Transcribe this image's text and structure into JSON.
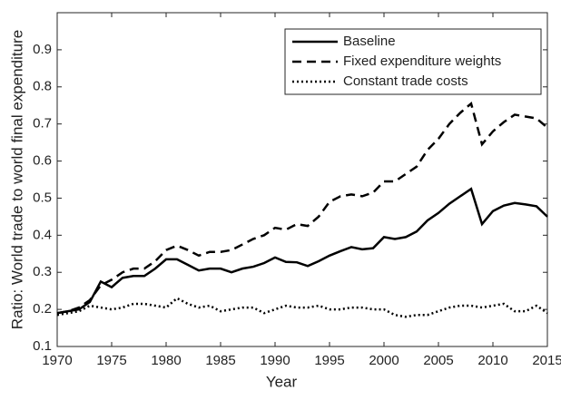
{
  "chart_data": {
    "type": "line",
    "x_label": "Year",
    "y_label": "Ratio: World trade to world final expenditure",
    "x": [
      1970,
      1971,
      1972,
      1973,
      1974,
      1975,
      1976,
      1977,
      1978,
      1979,
      1980,
      1981,
      1982,
      1983,
      1984,
      1985,
      1986,
      1987,
      1988,
      1989,
      1990,
      1991,
      1992,
      1993,
      1994,
      1995,
      1996,
      1997,
      1998,
      1999,
      2000,
      2001,
      2002,
      2003,
      2004,
      2005,
      2006,
      2007,
      2008,
      2009,
      2010,
      2011,
      2012,
      2013,
      2014,
      2015
    ],
    "series": [
      {
        "name": "Baseline",
        "color": "#000000",
        "line_style": "solid",
        "values": [
          0.19,
          0.195,
          0.2,
          0.22,
          0.275,
          0.26,
          0.285,
          0.29,
          0.29,
          0.31,
          0.335,
          0.335,
          0.32,
          0.305,
          0.31,
          0.31,
          0.3,
          0.31,
          0.315,
          0.325,
          0.34,
          0.328,
          0.327,
          0.317,
          0.33,
          0.345,
          0.357,
          0.368,
          0.362,
          0.365,
          0.395,
          0.39,
          0.395,
          0.41,
          0.44,
          0.46,
          0.485,
          0.505,
          0.525,
          0.43,
          0.465,
          0.48,
          0.487,
          0.483,
          0.478,
          0.45
        ]
      },
      {
        "name": "Fixed expenditure weights",
        "color": "#000000",
        "line_style": "dashed",
        "values": [
          0.19,
          0.195,
          0.205,
          0.225,
          0.265,
          0.28,
          0.3,
          0.31,
          0.31,
          0.33,
          0.36,
          0.372,
          0.36,
          0.345,
          0.355,
          0.355,
          0.36,
          0.375,
          0.39,
          0.4,
          0.42,
          0.415,
          0.43,
          0.425,
          0.45,
          0.49,
          0.505,
          0.51,
          0.505,
          0.515,
          0.545,
          0.545,
          0.565,
          0.585,
          0.63,
          0.66,
          0.7,
          0.73,
          0.755,
          0.645,
          0.68,
          0.705,
          0.725,
          0.72,
          0.715,
          0.69
        ]
      },
      {
        "name": "Constant trade costs",
        "color": "#000000",
        "line_style": "dotted",
        "values": [
          0.185,
          0.19,
          0.195,
          0.21,
          0.205,
          0.2,
          0.205,
          0.215,
          0.215,
          0.21,
          0.205,
          0.23,
          0.215,
          0.205,
          0.21,
          0.195,
          0.2,
          0.205,
          0.205,
          0.19,
          0.2,
          0.21,
          0.205,
          0.205,
          0.21,
          0.2,
          0.2,
          0.205,
          0.205,
          0.2,
          0.2,
          0.185,
          0.18,
          0.185,
          0.185,
          0.195,
          0.205,
          0.21,
          0.21,
          0.205,
          0.21,
          0.215,
          0.195,
          0.195,
          0.21,
          0.19
        ]
      }
    ],
    "xlim": [
      1970,
      2015
    ],
    "xticks": [
      1970,
      1975,
      1980,
      1985,
      1990,
      1995,
      2000,
      2005,
      2010,
      2015
    ],
    "ylim": [
      0.1,
      1.0
    ],
    "yticks": [
      0.1,
      0.2,
      0.3,
      0.4,
      0.5,
      0.6,
      0.7,
      0.8,
      0.9
    ],
    "grid": false,
    "legend": "upper right"
  }
}
